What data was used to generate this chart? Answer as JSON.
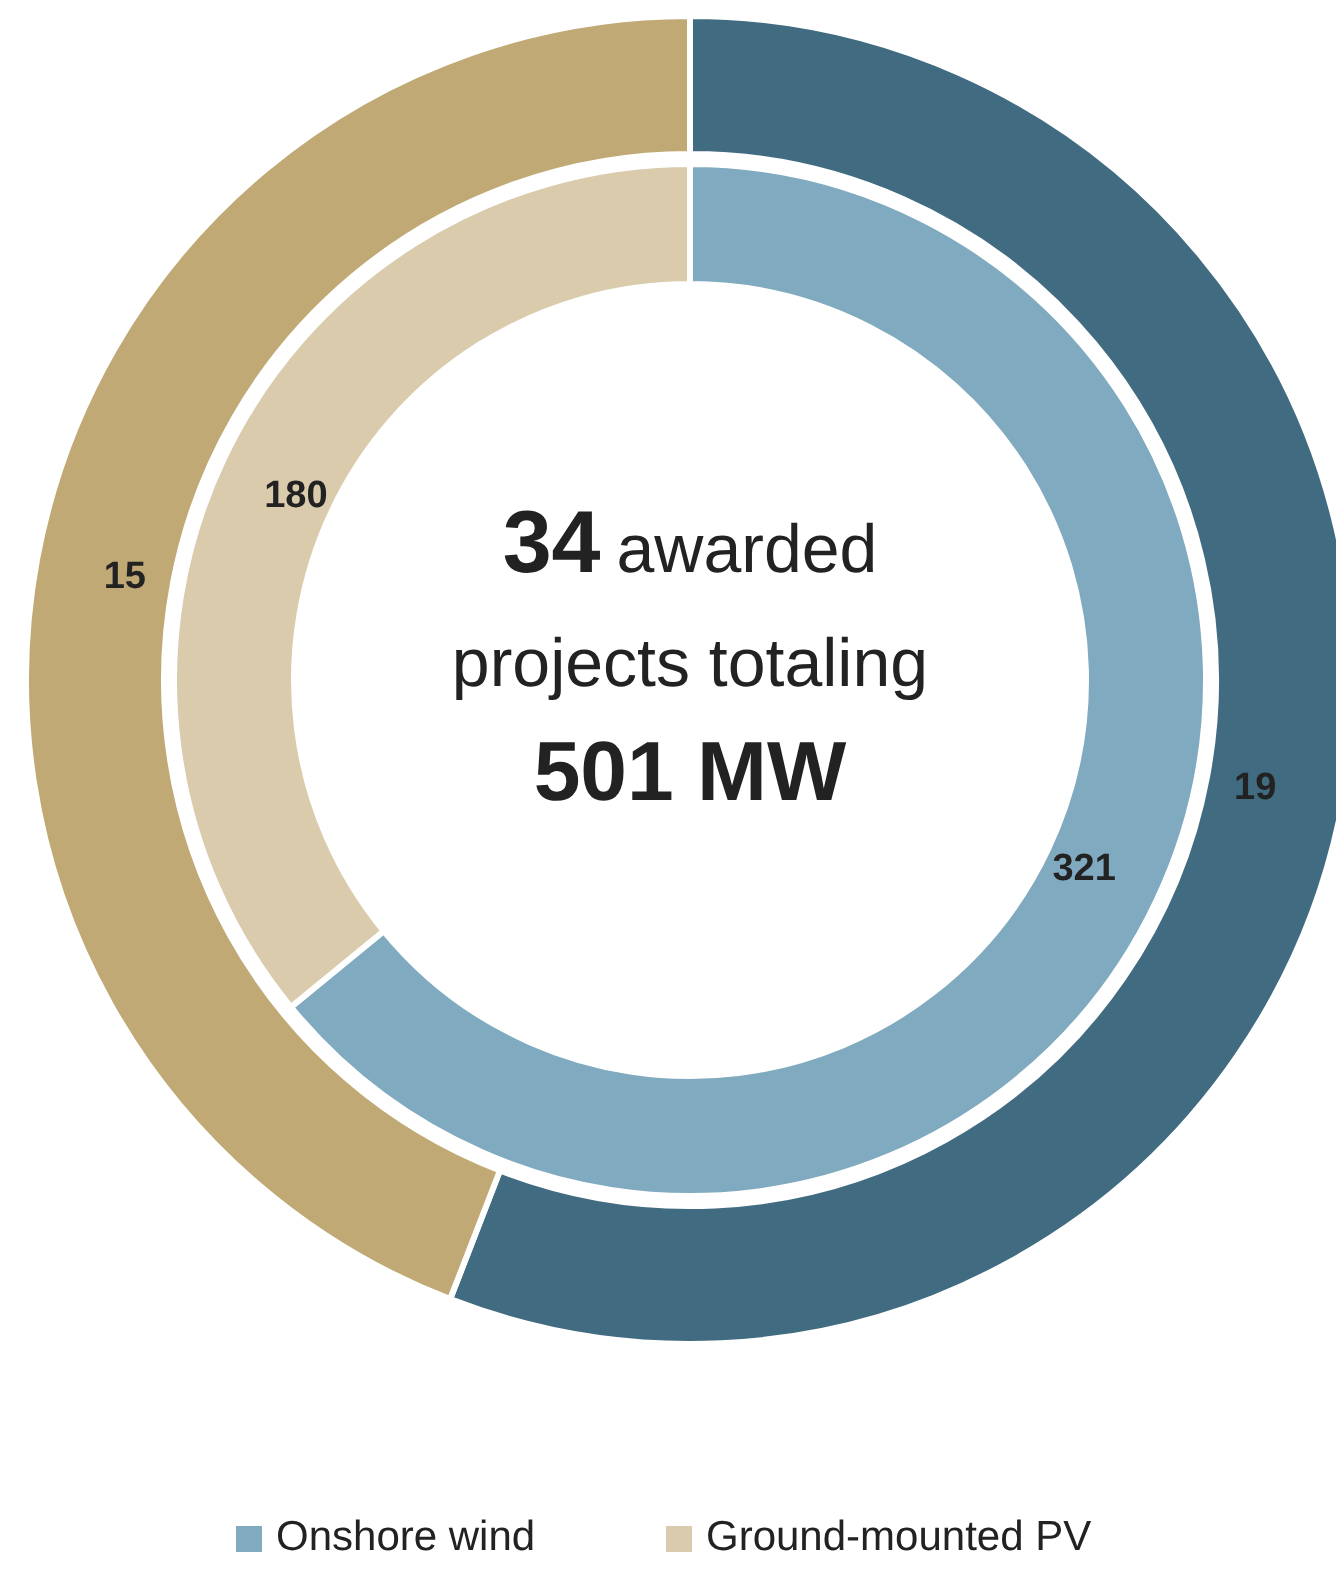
{
  "chart_data": {
    "type": "donut",
    "categories": [
      "Onshore wind",
      "Ground-mounted PV"
    ],
    "series": [
      {
        "values": [
          321,
          180
        ],
        "colors": [
          "#80aabf",
          "#d9cbab"
        ]
      },
      {
        "values": [
          19,
          15
        ],
        "colors": [
          "#416b80",
          "#c0a975"
        ]
      }
    ],
    "annotations": [
      "34 awarded",
      "projects totaling",
      "501 MW"
    ],
    "data_labels": true,
    "legend": "bottom"
  }
}
